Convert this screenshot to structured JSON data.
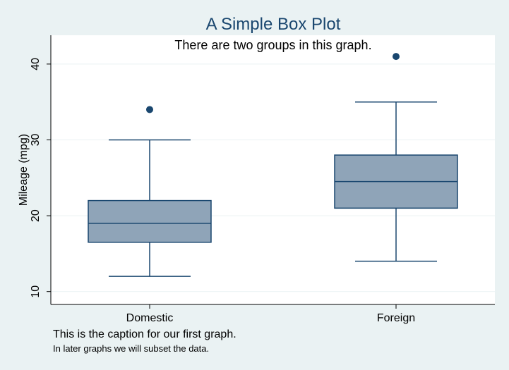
{
  "chart_data": {
    "type": "box",
    "title": "A Simple Box Plot",
    "subtitle": "There are two groups in this graph.",
    "ylabel": "Mileage (mpg)",
    "xlabel": "",
    "caption": "This is the caption for our first graph.",
    "note": "In later graphs we will subset the data.",
    "ylim": [
      8.3,
      43.8
    ],
    "yticks": [
      10,
      20,
      30,
      40
    ],
    "grid": true,
    "categories": [
      "Domestic",
      "Foreign"
    ],
    "boxes": [
      {
        "category": "Domestic",
        "whisker_low": 12,
        "q1": 16.5,
        "median": 19,
        "q3": 22,
        "whisker_high": 30,
        "outliers": [
          34
        ]
      },
      {
        "category": "Foreign",
        "whisker_low": 14,
        "q1": 21,
        "median": 24.5,
        "q3": 28,
        "whisker_high": 35,
        "outliers": [
          41
        ]
      }
    ],
    "colors": {
      "box_fill": "#8fa4b8",
      "box_stroke": "#1a476f",
      "title": "#1a476f",
      "background": "#eaf2f3",
      "plot_background": "#ffffff",
      "grid": "#eaf2f3"
    }
  }
}
